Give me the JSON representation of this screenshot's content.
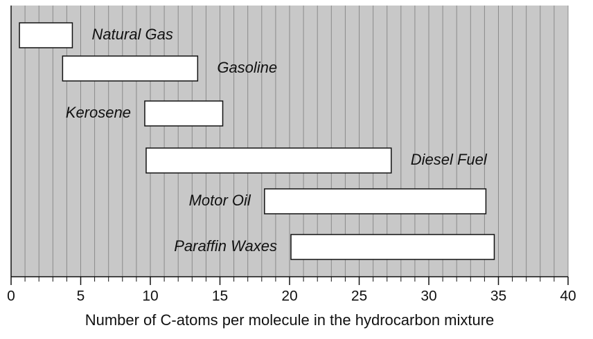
{
  "chart_data": {
    "type": "range_bar",
    "x_label": "Number of C-atoms per molecule in the hydrocarbon mixture",
    "categories": [
      "Natural Gas",
      "Gasoline",
      "Kerosene",
      "Diesel Fuel",
      "Motor Oil",
      "Paraffin Waxes"
    ],
    "starts": [
      0.6,
      3.7,
      9.6,
      9.7,
      18.2,
      20.1
    ],
    "ends": [
      4.4,
      13.4,
      15.2,
      27.3,
      34.1,
      34.7
    ],
    "xlim": [
      0,
      40
    ],
    "xticks": [
      0,
      5,
      10,
      15,
      20,
      25,
      30,
      35,
      40
    ],
    "minor_xticks": [
      0,
      1,
      2,
      3,
      4,
      5,
      6,
      7,
      8,
      9,
      10,
      11,
      12,
      13,
      14,
      15,
      16,
      17,
      18,
      19,
      20,
      21,
      22,
      23,
      24,
      25,
      26,
      27,
      28,
      29,
      30,
      31,
      32,
      33,
      34,
      35,
      36,
      37,
      38,
      39,
      40
    ],
    "grid": true,
    "background": "#c8c8c8",
    "bar_color": "#ffffff"
  }
}
